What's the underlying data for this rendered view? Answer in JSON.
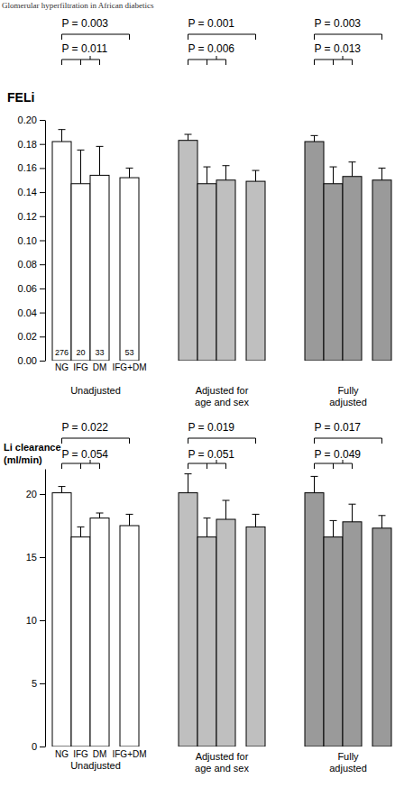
{
  "header": "Glomerular hyperfiltration in African diabetics",
  "chart_data": [
    {
      "type": "bar",
      "y_label": [
        "FELi"
      ],
      "categories": [
        "NG",
        "IFG",
        "DM",
        "IFG+DM"
      ],
      "ylim": [
        0,
        0.2
      ],
      "yticks": [
        {
          "value": 0,
          "label": "0.00"
        },
        {
          "value": 0.02,
          "label": "0.02"
        },
        {
          "value": 0.04,
          "label": "0.04"
        },
        {
          "value": 0.06,
          "label": "0.06"
        },
        {
          "value": 0.08,
          "label": "0.08"
        },
        {
          "value": 0.1,
          "label": "0.10"
        },
        {
          "value": 0.12,
          "label": "0.12"
        },
        {
          "value": 0.14,
          "label": "0.14"
        },
        {
          "value": 0.16,
          "label": "0.16"
        },
        {
          "value": 0.18,
          "label": "0.18"
        },
        {
          "value": 0.2,
          "label": "0.20"
        }
      ],
      "series": [
        {
          "name": "Unadjusted",
          "color": "#ffffff",
          "values": [
            0.182,
            0.147,
            0.154,
            0.152
          ],
          "errors": [
            0.01,
            0.028,
            0.024,
            0.008
          ],
          "n": [
            276,
            20,
            33,
            53
          ],
          "p_overall": "P = 0.003",
          "p_groups": "P = 0.011"
        },
        {
          "name": "Adjusted for age and sex",
          "color": "#bfbfbf",
          "values": [
            0.183,
            0.147,
            0.15,
            0.149
          ],
          "errors": [
            0.005,
            0.014,
            0.012,
            0.009
          ],
          "p_overall": "P = 0.001",
          "p_groups": "P = 0.006"
        },
        {
          "name": "Fully adjusted",
          "color": "#9a9a9a",
          "values": [
            0.182,
            0.147,
            0.153,
            0.15
          ],
          "errors": [
            0.005,
            0.014,
            0.012,
            0.01
          ],
          "p_overall": "P = 0.003",
          "p_groups": "P = 0.013"
        }
      ]
    },
    {
      "type": "bar",
      "y_label": [
        "Li clearance",
        "(ml/min)"
      ],
      "categories": [
        "NG",
        "IFG",
        "DM",
        "IFG+DM"
      ],
      "ylim": [
        0,
        22
      ],
      "yticks": [
        0,
        5,
        10,
        15,
        20
      ],
      "series": [
        {
          "name": "Unadjusted",
          "color": "#ffffff",
          "values": [
            20.1,
            16.6,
            18.1,
            17.5
          ],
          "errors": [
            0.5,
            0.8,
            0.4,
            0.9
          ],
          "p_overall": "P = 0.022",
          "p_groups": "P = 0.054"
        },
        {
          "name": "Adjusted for age and sex",
          "color": "#bfbfbf",
          "values": [
            20.1,
            16.6,
            18.0,
            17.4
          ],
          "errors": [
            1.5,
            1.5,
            1.5,
            1.0
          ],
          "p_overall": "P = 0.019",
          "p_groups": "P = 0.051"
        },
        {
          "name": "Fully adjusted",
          "color": "#9a9a9a",
          "values": [
            20.1,
            16.6,
            17.8,
            17.3
          ],
          "errors": [
            1.3,
            1.3,
            1.4,
            1.0
          ],
          "p_overall": "P = 0.017",
          "p_groups": "P = 0.049"
        }
      ]
    }
  ]
}
